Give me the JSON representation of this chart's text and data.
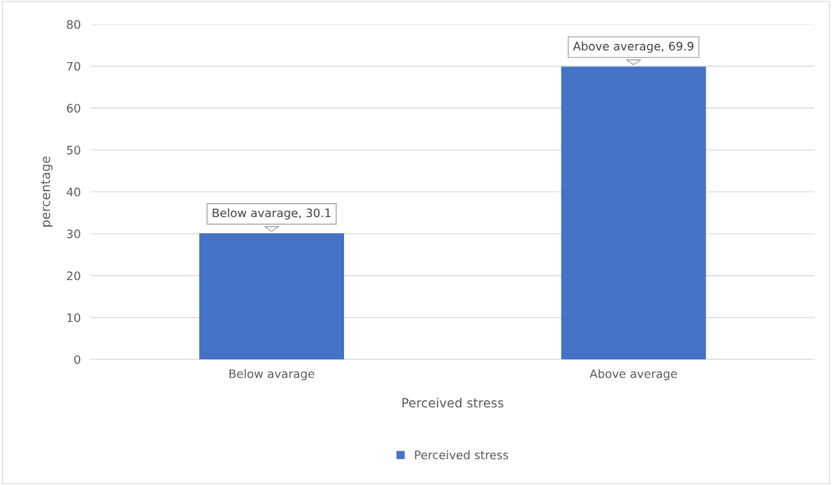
{
  "chart_data": {
    "type": "bar",
    "xlabel": "Perceived stress",
    "ylabel": "percentage",
    "categories": [
      "Below avarage",
      "Above average"
    ],
    "series": [
      {
        "name": "Perceived stress",
        "color": "#4472c4",
        "values": [
          30.1,
          69.9
        ],
        "value_labels": [
          "Below avarage, 30.1",
          "Above average, 69.9"
        ]
      }
    ],
    "ylim": [
      0,
      80
    ],
    "yticks": [
      0,
      10,
      20,
      30,
      40,
      50,
      60,
      70,
      80
    ],
    "grid": "y",
    "legend": "bottom"
  }
}
